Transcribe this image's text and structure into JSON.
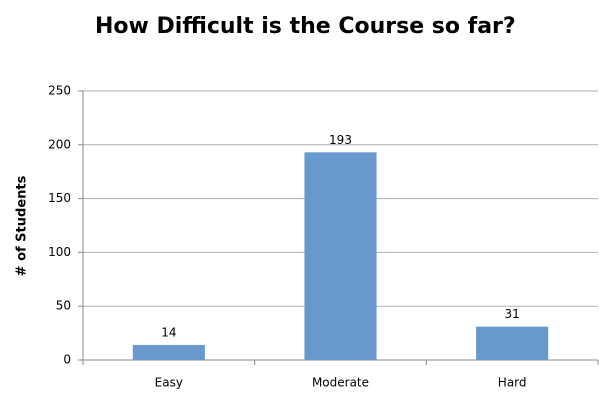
{
  "chart_data": {
    "type": "bar",
    "title": "How Difficult is the Course so far?",
    "y_label": "# of Students",
    "categories": [
      "Easy",
      "Moderate",
      "Hard"
    ],
    "values": [
      14,
      193,
      31
    ],
    "color": "#6799cd",
    "ylim": [
      0,
      250
    ],
    "yticks": [
      0,
      50,
      100,
      150,
      200,
      250
    ],
    "grid": true
  }
}
